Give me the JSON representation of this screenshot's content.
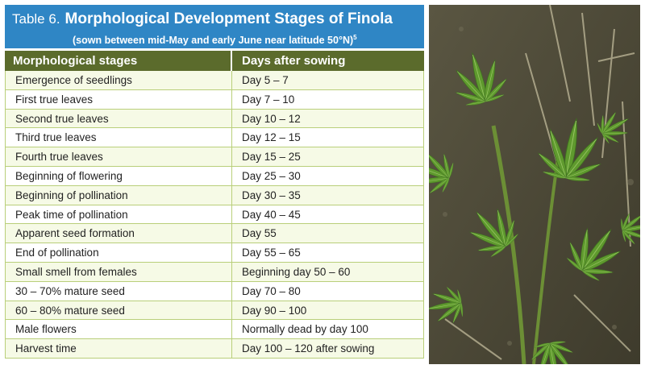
{
  "header": {
    "table_label": "Table 6.",
    "title": "Morphological Development Stages of Finola",
    "subtitle": "(sown between mid-May and early June near latitude 50°N)",
    "footnote": "5"
  },
  "table": {
    "columns": [
      "Morphological stages",
      "Days after sowing"
    ],
    "rows": [
      [
        "Emergence of seedlings",
        "Day 5 – 7"
      ],
      [
        "First true leaves",
        "Day 7 – 10"
      ],
      [
        "Second true leaves",
        "Day 10 – 12"
      ],
      [
        "Third true leaves",
        "Day 12 – 15"
      ],
      [
        "Fourth true leaves",
        "Day 15 – 25"
      ],
      [
        "Beginning of flowering",
        "Day 25 – 30"
      ],
      [
        "Beginning of pollination",
        "Day 30 – 35"
      ],
      [
        "Peak time of pollination",
        "Day 40 – 45"
      ],
      [
        "Apparent seed formation",
        "Day 55"
      ],
      [
        "End of pollination",
        "Day 55 – 65"
      ],
      [
        "Small smell from females",
        "Beginning day 50 – 60"
      ],
      [
        "30 – 70% mature seed",
        "Day 70 – 80"
      ],
      [
        "60 – 80% mature seed",
        "Day 90 – 100"
      ],
      [
        "Male flowers",
        "Normally dead by day 100"
      ],
      [
        "Harvest time",
        "Day 100 – 120 after sowing"
      ]
    ]
  },
  "colors": {
    "header_bg": "#2f86c5",
    "table_header_bg": "#5b6b2c",
    "row_alt_bg": "#f6fae6",
    "grid": "#b9cf7a"
  }
}
